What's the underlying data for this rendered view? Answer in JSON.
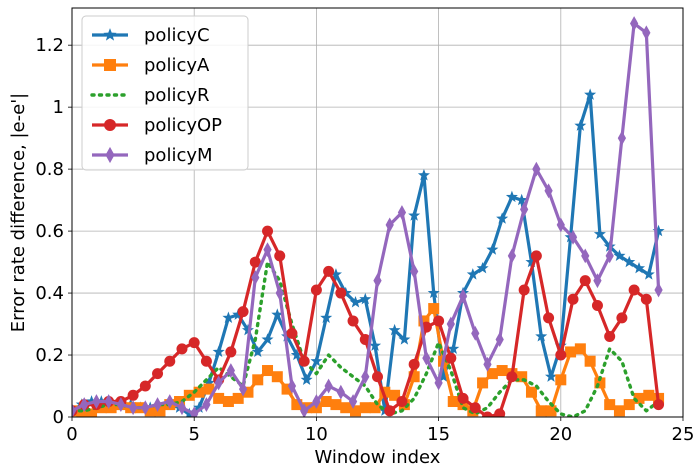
{
  "chart_data": {
    "type": "line",
    "xlabel": "Window index",
    "ylabel": "Error rate difference, |e-e'|",
    "xlim": [
      0,
      25
    ],
    "ylim": [
      0,
      1.32
    ],
    "xticks": [
      0,
      5,
      10,
      15,
      20,
      25
    ],
    "xtick_labels": [
      "0",
      "5",
      "10",
      "15",
      "20",
      "25"
    ],
    "yticks": [
      0,
      0.2,
      0.4,
      0.6,
      0.8,
      1.0,
      1.2
    ],
    "ytick_labels": [
      "0",
      "0.2",
      "0.4",
      "0.6",
      "0.8",
      "1",
      "1.2"
    ],
    "grid": true,
    "legend_position": "upper-left",
    "series": [
      {
        "name": "policyC",
        "color": "#1f77b4",
        "style": "solid",
        "marker": "star",
        "x": [
          0,
          0.4,
          0.8,
          1.2,
          1.6,
          2.0,
          2.4,
          2.8,
          3.2,
          3.6,
          4.0,
          4.4,
          4.8,
          5.2,
          5.6,
          6.0,
          6.4,
          6.8,
          7.2,
          7.6,
          8.0,
          8.4,
          8.8,
          9.2,
          9.6,
          10.0,
          10.4,
          10.8,
          11.2,
          11.6,
          12.0,
          12.4,
          12.8,
          13.2,
          13.6,
          14.0,
          14.4,
          14.8,
          15.2,
          15.6,
          16.0,
          16.4,
          16.8,
          17.2,
          17.6,
          18.0,
          18.4,
          18.8,
          19.2,
          19.6,
          20.0,
          20.4,
          20.8,
          21.2,
          21.6,
          22.0,
          22.4,
          22.8,
          23.2,
          23.6,
          24.0
        ],
        "values": [
          0.02,
          0.04,
          0.05,
          0.05,
          0.04,
          0.04,
          0.04,
          0.03,
          0.03,
          0.03,
          0.04,
          0.03,
          0.01,
          0.03,
          0.11,
          0.21,
          0.32,
          0.33,
          0.28,
          0.21,
          0.25,
          0.33,
          0.26,
          0.2,
          0.12,
          0.18,
          0.32,
          0.46,
          0.4,
          0.37,
          0.38,
          0.23,
          0.02,
          0.28,
          0.25,
          0.65,
          0.78,
          0.4,
          0.13,
          0.22,
          0.4,
          0.46,
          0.48,
          0.54,
          0.64,
          0.71,
          0.7,
          0.5,
          0.26,
          0.13,
          0.23,
          0.58,
          0.94,
          1.04,
          0.59,
          0.55,
          0.52,
          0.5,
          0.48,
          0.46,
          0.6
        ]
      },
      {
        "name": "policyA",
        "color": "#ff7f0e",
        "style": "solid",
        "marker": "square",
        "x": [
          0,
          0.4,
          0.8,
          1.2,
          1.6,
          2.0,
          2.4,
          2.8,
          3.2,
          3.6,
          4.0,
          4.4,
          4.8,
          5.2,
          5.6,
          6.0,
          6.4,
          6.8,
          7.2,
          7.6,
          8.0,
          8.4,
          8.8,
          9.2,
          9.6,
          10.0,
          10.4,
          10.8,
          11.2,
          11.6,
          12.0,
          12.4,
          12.8,
          13.2,
          13.6,
          14.0,
          14.4,
          14.8,
          15.2,
          15.6,
          16.0,
          16.4,
          16.8,
          17.2,
          17.6,
          18.0,
          18.4,
          18.8,
          19.2,
          19.6,
          20.0,
          20.4,
          20.8,
          21.2,
          21.6,
          22.0,
          22.4,
          22.8,
          23.2,
          23.6,
          24.0
        ],
        "values": [
          0.02,
          0.01,
          0.01,
          0.03,
          0.03,
          0.04,
          0.03,
          0.03,
          0.02,
          0.02,
          0.04,
          0.05,
          0.07,
          0.08,
          0.09,
          0.06,
          0.05,
          0.06,
          0.08,
          0.12,
          0.15,
          0.13,
          0.09,
          0.04,
          0.03,
          0.03,
          0.05,
          0.04,
          0.03,
          0.02,
          0.03,
          0.03,
          0.08,
          0.07,
          0.04,
          0.13,
          0.31,
          0.35,
          0.18,
          0.05,
          0.04,
          0.02,
          0.11,
          0.14,
          0.15,
          0.14,
          0.13,
          0.08,
          0.02,
          0.02,
          0.12,
          0.21,
          0.22,
          0.18,
          0.11,
          0.04,
          0.02,
          0.04,
          0.06,
          0.07,
          0.06
        ]
      },
      {
        "name": "policyR",
        "color": "#2ca02c",
        "style": "dotted",
        "marker": "none",
        "x": [
          0,
          0.5,
          1.0,
          1.5,
          2.0,
          2.5,
          3.0,
          3.5,
          4.0,
          4.5,
          5.0,
          5.5,
          6.0,
          6.5,
          7.0,
          7.5,
          8.0,
          8.5,
          9.0,
          9.5,
          10.0,
          10.5,
          11.0,
          11.5,
          12.0,
          12.5,
          13.0,
          13.5,
          14.0,
          14.5,
          15.0,
          15.5,
          16.0,
          16.5,
          17.0,
          17.5,
          18.0,
          18.5,
          19.0,
          19.5,
          20.0,
          20.5,
          21.0,
          21.5,
          22.0,
          22.5,
          23.0,
          23.5,
          24.0
        ],
        "values": [
          0.02,
          0.02,
          0.03,
          0.04,
          0.04,
          0.03,
          0.03,
          0.04,
          0.04,
          0.05,
          0.08,
          0.12,
          0.16,
          0.13,
          0.1,
          0.25,
          0.5,
          0.44,
          0.3,
          0.18,
          0.14,
          0.2,
          0.16,
          0.13,
          0.1,
          0.04,
          0.01,
          0.02,
          0.06,
          0.14,
          0.24,
          0.15,
          0.03,
          0.01,
          0.03,
          0.08,
          0.12,
          0.12,
          0.1,
          0.05,
          0.01,
          0.0,
          0.02,
          0.1,
          0.22,
          0.18,
          0.06,
          0.02,
          0.05
        ]
      },
      {
        "name": "policyOP",
        "color": "#d62728",
        "style": "solid",
        "marker": "circle",
        "x": [
          0,
          0.5,
          1.0,
          1.5,
          2.0,
          2.5,
          3.0,
          3.5,
          4.0,
          4.5,
          5.0,
          5.5,
          6.0,
          6.5,
          7.0,
          7.5,
          8.0,
          8.5,
          9.0,
          9.5,
          10.0,
          10.5,
          11.0,
          11.5,
          12.0,
          12.5,
          13.0,
          13.5,
          14.0,
          14.5,
          15.0,
          15.5,
          16.0,
          16.5,
          17.0,
          17.5,
          18.0,
          18.5,
          19.0,
          19.5,
          20.0,
          20.5,
          21.0,
          21.5,
          22.0,
          22.5,
          23.0,
          23.5,
          24.0
        ],
        "values": [
          0.02,
          0.04,
          0.04,
          0.05,
          0.05,
          0.07,
          0.1,
          0.14,
          0.18,
          0.22,
          0.24,
          0.18,
          0.12,
          0.21,
          0.34,
          0.5,
          0.6,
          0.52,
          0.27,
          0.18,
          0.41,
          0.47,
          0.4,
          0.31,
          0.25,
          0.13,
          0.02,
          0.05,
          0.17,
          0.29,
          0.31,
          0.19,
          0.06,
          0.03,
          0.0,
          0.01,
          0.13,
          0.41,
          0.52,
          0.32,
          0.2,
          0.38,
          0.44,
          0.36,
          0.26,
          0.32,
          0.41,
          0.38,
          0.04
        ]
      },
      {
        "name": "policyM",
        "color": "#9467bd",
        "style": "solid",
        "marker": "diamond",
        "x": [
          0,
          0.5,
          1.0,
          1.5,
          2.0,
          2.5,
          3.0,
          3.5,
          4.0,
          4.5,
          5.0,
          5.5,
          6.0,
          6.5,
          7.0,
          7.5,
          8.0,
          8.5,
          9.0,
          9.5,
          10.0,
          10.5,
          11.0,
          11.5,
          12.0,
          12.5,
          13.0,
          13.5,
          14.0,
          14.5,
          15.0,
          15.5,
          16.0,
          16.5,
          17.0,
          17.5,
          18.0,
          18.5,
          19.0,
          19.5,
          20.0,
          20.5,
          21.0,
          21.5,
          22.0,
          22.5,
          23.0,
          23.5,
          24.0
        ],
        "values": [
          0.02,
          0.04,
          0.05,
          0.05,
          0.04,
          0.03,
          0.03,
          0.04,
          0.05,
          0.03,
          0.01,
          0.04,
          0.11,
          0.15,
          0.09,
          0.45,
          0.54,
          0.4,
          0.1,
          0.02,
          0.05,
          0.1,
          0.08,
          0.05,
          0.13,
          0.44,
          0.62,
          0.66,
          0.47,
          0.19,
          0.11,
          0.3,
          0.39,
          0.27,
          0.17,
          0.25,
          0.52,
          0.67,
          0.8,
          0.73,
          0.62,
          0.58,
          0.52,
          0.44,
          0.52,
          0.9,
          1.27,
          1.24,
          0.41
        ]
      }
    ]
  }
}
